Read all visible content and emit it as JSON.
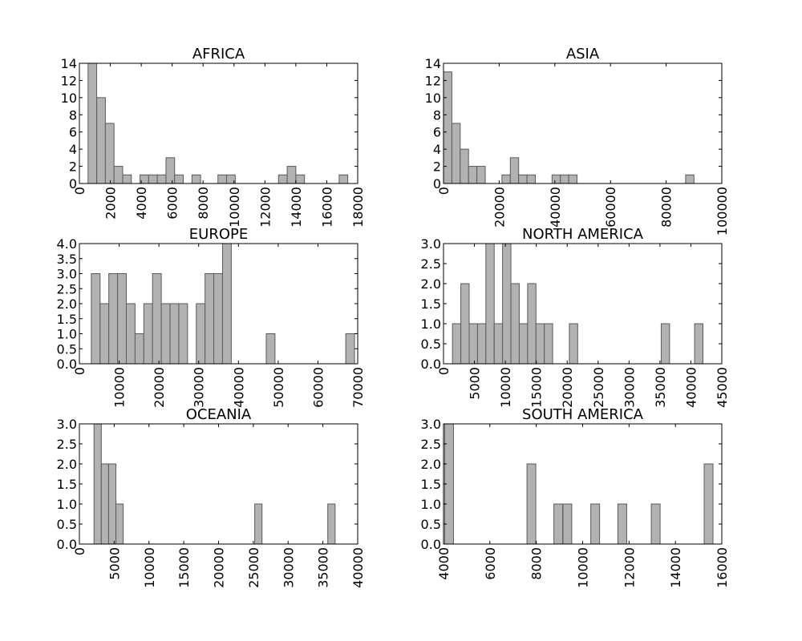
{
  "figure": {
    "bar_color": "#b2b2b2",
    "bar_edge_color": "#5a5a5a",
    "frame_color": "#000000"
  },
  "chart_data": [
    {
      "type": "bar",
      "title": "AFRICA",
      "xlim": [
        0,
        18000
      ],
      "ylim": [
        0,
        14
      ],
      "xticks": [
        "0",
        "2000",
        "4000",
        "6000",
        "8000",
        "10000",
        "12000",
        "14000",
        "16000",
        "18000"
      ],
      "yticks": [
        "0",
        "2",
        "4",
        "6",
        "8",
        "10",
        "12",
        "14"
      ],
      "bin_width": 560,
      "bins": [
        {
          "x": 560,
          "count": 14
        },
        {
          "x": 1120,
          "count": 10
        },
        {
          "x": 1680,
          "count": 7
        },
        {
          "x": 2240,
          "count": 2
        },
        {
          "x": 2800,
          "count": 1
        },
        {
          "x": 3920,
          "count": 1
        },
        {
          "x": 4480,
          "count": 1
        },
        {
          "x": 5040,
          "count": 1
        },
        {
          "x": 5600,
          "count": 3
        },
        {
          "x": 6160,
          "count": 1
        },
        {
          "x": 7280,
          "count": 1
        },
        {
          "x": 8960,
          "count": 1
        },
        {
          "x": 9520,
          "count": 1
        },
        {
          "x": 12880,
          "count": 1
        },
        {
          "x": 13440,
          "count": 2
        },
        {
          "x": 14000,
          "count": 1
        },
        {
          "x": 16800,
          "count": 1
        }
      ]
    },
    {
      "type": "bar",
      "title": "ASIA",
      "xlim": [
        0,
        100000
      ],
      "ylim": [
        0,
        14
      ],
      "xticks": [
        "0",
        "20000",
        "40000",
        "60000",
        "80000",
        "100000"
      ],
      "yticks": [
        "0",
        "2",
        "4",
        "6",
        "8",
        "10",
        "12",
        "14"
      ],
      "bin_width": 3000,
      "bins": [
        {
          "x": 0,
          "count": 13
        },
        {
          "x": 3000,
          "count": 7
        },
        {
          "x": 6000,
          "count": 4
        },
        {
          "x": 9000,
          "count": 2
        },
        {
          "x": 12000,
          "count": 2
        },
        {
          "x": 21000,
          "count": 1
        },
        {
          "x": 24000,
          "count": 3
        },
        {
          "x": 27000,
          "count": 1
        },
        {
          "x": 30000,
          "count": 1
        },
        {
          "x": 39000,
          "count": 1
        },
        {
          "x": 42000,
          "count": 1
        },
        {
          "x": 45000,
          "count": 1
        },
        {
          "x": 87000,
          "count": 1
        }
      ]
    },
    {
      "type": "bar",
      "title": "EUROPE",
      "xlim": [
        0,
        70000
      ],
      "ylim": [
        0,
        4
      ],
      "xticks": [
        "0",
        "10000",
        "20000",
        "30000",
        "40000",
        "50000",
        "60000",
        "70000"
      ],
      "yticks": [
        "0.0",
        "0.5",
        "1.0",
        "1.5",
        "2.0",
        "2.5",
        "3.0",
        "3.5",
        "4.0"
      ],
      "bin_width": 2200,
      "bins": [
        {
          "x": 3000,
          "count": 3
        },
        {
          "x": 5200,
          "count": 2
        },
        {
          "x": 7400,
          "count": 3
        },
        {
          "x": 9600,
          "count": 3
        },
        {
          "x": 11800,
          "count": 2
        },
        {
          "x": 14000,
          "count": 1
        },
        {
          "x": 16200,
          "count": 2
        },
        {
          "x": 18400,
          "count": 3
        },
        {
          "x": 20600,
          "count": 2
        },
        {
          "x": 22800,
          "count": 2
        },
        {
          "x": 25000,
          "count": 2
        },
        {
          "x": 29400,
          "count": 2
        },
        {
          "x": 31600,
          "count": 3
        },
        {
          "x": 33800,
          "count": 3
        },
        {
          "x": 36000,
          "count": 4
        },
        {
          "x": 47000,
          "count": 1
        },
        {
          "x": 67000,
          "count": 1
        }
      ]
    },
    {
      "type": "bar",
      "title": "NORTH AMERICA",
      "xlim": [
        0,
        45000
      ],
      "ylim": [
        0,
        3
      ],
      "xticks": [
        "0",
        "5000",
        "10000",
        "15000",
        "20000",
        "25000",
        "30000",
        "35000",
        "40000",
        "45000"
      ],
      "yticks": [
        "0.0",
        "0.5",
        "1.0",
        "1.5",
        "2.0",
        "2.5",
        "3.0"
      ],
      "bin_width": 1350,
      "bins": [
        {
          "x": 1450,
          "count": 1
        },
        {
          "x": 2800,
          "count": 2
        },
        {
          "x": 4150,
          "count": 1
        },
        {
          "x": 5500,
          "count": 1
        },
        {
          "x": 6850,
          "count": 3
        },
        {
          "x": 8200,
          "count": 1
        },
        {
          "x": 9550,
          "count": 3
        },
        {
          "x": 10900,
          "count": 2
        },
        {
          "x": 12250,
          "count": 1
        },
        {
          "x": 13600,
          "count": 2
        },
        {
          "x": 14950,
          "count": 1
        },
        {
          "x": 16300,
          "count": 1
        },
        {
          "x": 20350,
          "count": 1
        },
        {
          "x": 35200,
          "count": 1
        },
        {
          "x": 40600,
          "count": 1
        }
      ]
    },
    {
      "type": "bar",
      "title": "OCEANIA",
      "xlim": [
        0,
        40000
      ],
      "ylim": [
        0,
        3
      ],
      "xticks": [
        "0",
        "5000",
        "10000",
        "15000",
        "20000",
        "25000",
        "30000",
        "35000",
        "40000"
      ],
      "yticks": [
        "0.0",
        "0.5",
        "1.0",
        "1.5",
        "2.0",
        "2.5",
        "3.0"
      ],
      "bin_width": 1050,
      "bins": [
        {
          "x": 2100,
          "count": 3
        },
        {
          "x": 3150,
          "count": 2
        },
        {
          "x": 4200,
          "count": 2
        },
        {
          "x": 5250,
          "count": 1
        },
        {
          "x": 25200,
          "count": 1
        },
        {
          "x": 35700,
          "count": 1
        }
      ]
    },
    {
      "type": "bar",
      "title": "SOUTH AMERICA",
      "xlim": [
        4000,
        16000
      ],
      "ylim": [
        0,
        3
      ],
      "xticks": [
        "4000",
        "6000",
        "8000",
        "10000",
        "12000",
        "14000",
        "16000"
      ],
      "yticks": [
        "0.0",
        "0.5",
        "1.0",
        "1.5",
        "2.0",
        "2.5",
        "3.0"
      ],
      "bin_width": 380,
      "bins": [
        {
          "x": 4050,
          "count": 3
        },
        {
          "x": 7600,
          "count": 2
        },
        {
          "x": 8760,
          "count": 1
        },
        {
          "x": 9150,
          "count": 1
        },
        {
          "x": 10350,
          "count": 1
        },
        {
          "x": 11520,
          "count": 1
        },
        {
          "x": 12960,
          "count": 1
        },
        {
          "x": 15240,
          "count": 2
        }
      ]
    }
  ]
}
